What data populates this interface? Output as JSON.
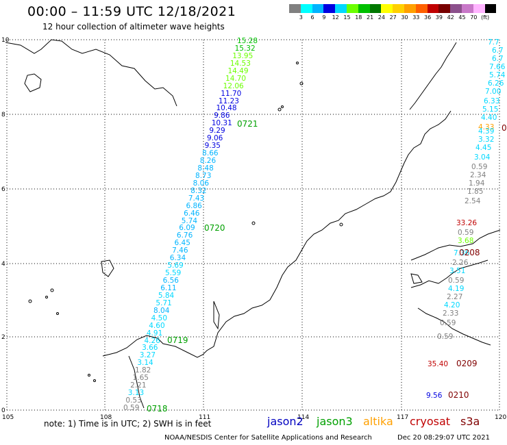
{
  "header": {
    "title": "00:00 – 11:59 UTC 12/18/2021",
    "subtitle": "12 hour collection of altimeter wave heights"
  },
  "legend": {
    "colors": [
      "#808080",
      "#00ffff",
      "#00b4ff",
      "#0000e0",
      "#00d8ff",
      "#6cff00",
      "#00c000",
      "#007800",
      "#ffff00",
      "#ffd000",
      "#ffa000",
      "#ff6000",
      "#c00000",
      "#780000",
      "#8c508c",
      "#c878c8",
      "#ffb4ff",
      "#000000"
    ],
    "labels": [
      "3",
      "6",
      "9",
      "12",
      "15",
      "18",
      "21",
      "24",
      "27",
      "30",
      "33",
      "36",
      "39",
      "42",
      "45",
      "70",
      "(ft)"
    ]
  },
  "axes": {
    "lat_labels": [
      "10",
      "8",
      "6",
      "4",
      "2",
      "0"
    ],
    "lon_labels": [
      "105",
      "108",
      "111",
      "114",
      "117",
      "120"
    ]
  },
  "track_main": [
    {
      "v": "15.28",
      "c": "#00c000"
    },
    {
      "v": "15.32",
      "c": "#00c000"
    },
    {
      "v": "13.95",
      "c": "#6cff00"
    },
    {
      "v": "14.53",
      "c": "#6cff00"
    },
    {
      "v": "14.49",
      "c": "#6cff00"
    },
    {
      "v": "14.70",
      "c": "#6cff00"
    },
    {
      "v": "12.06",
      "c": "#6cff00"
    },
    {
      "v": "11.70",
      "c": "#0000e0"
    },
    {
      "v": "11.23",
      "c": "#0000e0"
    },
    {
      "v": "10.48",
      "c": "#0000e0"
    },
    {
      "v": "9.86",
      "c": "#0000e0"
    },
    {
      "v": "10.31",
      "c": "#0000e0"
    },
    {
      "v": "9.29",
      "c": "#0000e0"
    },
    {
      "v": "9.06",
      "c": "#0000e0"
    },
    {
      "v": "9.35",
      "c": "#0000e0"
    },
    {
      "v": "8.66",
      "c": "#00b4ff"
    },
    {
      "v": "8.26",
      "c": "#00b4ff"
    },
    {
      "v": "8.48",
      "c": "#00b4ff"
    },
    {
      "v": "8.73",
      "c": "#00b4ff"
    },
    {
      "v": "8.06",
      "c": "#00b4ff"
    },
    {
      "v": "8.32",
      "c": "#00b4ff"
    },
    {
      "v": "7.43",
      "c": "#00b4ff"
    },
    {
      "v": "6.86",
      "c": "#00b4ff"
    },
    {
      "v": "6.46",
      "c": "#00b4ff"
    },
    {
      "v": "5.74",
      "c": "#00b4ff"
    },
    {
      "v": "6.09",
      "c": "#00b4ff"
    },
    {
      "v": "6.76",
      "c": "#00b4ff"
    },
    {
      "v": "6.45",
      "c": "#00b4ff"
    },
    {
      "v": "7.46",
      "c": "#00b4ff"
    },
    {
      "v": "6.34",
      "c": "#00b4ff"
    },
    {
      "v": "5.69",
      "c": "#00d8ff"
    },
    {
      "v": "5.59",
      "c": "#00d8ff"
    },
    {
      "v": "6.56",
      "c": "#00b4ff"
    },
    {
      "v": "6.11",
      "c": "#00b4ff"
    },
    {
      "v": "5.84",
      "c": "#00d8ff"
    },
    {
      "v": "5.71",
      "c": "#00d8ff"
    },
    {
      "v": "8.04",
      "c": "#00b4ff"
    },
    {
      "v": "4.50",
      "c": "#00d8ff"
    },
    {
      "v": "4.60",
      "c": "#00d8ff"
    },
    {
      "v": "4.91",
      "c": "#00d8ff"
    },
    {
      "v": "4.26",
      "c": "#00d8ff"
    },
    {
      "v": "3.66",
      "c": "#00d8ff"
    },
    {
      "v": "3.27",
      "c": "#00d8ff"
    },
    {
      "v": "3.14",
      "c": "#00d8ff"
    },
    {
      "v": "1.82",
      "c": "#808080"
    },
    {
      "v": "1.65",
      "c": "#808080"
    },
    {
      "v": "2.21",
      "c": "#808080"
    },
    {
      "v": "3.13",
      "c": "#00d8ff"
    },
    {
      "v": "0.53",
      "c": "#808080"
    },
    {
      "v": "0.59",
      "c": "#808080"
    }
  ],
  "track_east": [
    {
      "v": "7.7",
      "c": "#00d8ff"
    },
    {
      "v": "6.7",
      "c": "#00d8ff"
    },
    {
      "v": "6.7",
      "c": "#00d8ff"
    },
    {
      "v": "7.66",
      "c": "#00d8ff"
    },
    {
      "v": "5.74",
      "c": "#00d8ff"
    },
    {
      "v": "6.26",
      "c": "#00d8ff"
    },
    {
      "v": "7.00",
      "c": "#00d8ff"
    },
    {
      "v": "6.33",
      "c": "#00d8ff"
    },
    {
      "v": "5.15",
      "c": "#00d8ff"
    },
    {
      "v": "4.40",
      "c": "#00d8ff"
    },
    {
      "v": "4.33",
      "c": "#ffa000"
    },
    {
      "v": "4.39",
      "c": "#00d8ff"
    },
    {
      "v": "3.32",
      "c": "#00d8ff"
    },
    {
      "v": "4.45",
      "c": "#00d8ff"
    },
    {
      "v": "3.04",
      "c": "#00d8ff"
    },
    {
      "v": "0.59",
      "c": "#808080"
    },
    {
      "v": "2.34",
      "c": "#808080"
    },
    {
      "v": "1.94",
      "c": "#808080"
    },
    {
      "v": "1.85",
      "c": "#808080"
    },
    {
      "v": "2.54",
      "c": "#808080"
    },
    {
      "v": "33.26",
      "c": "#c00000"
    },
    {
      "v": "0.59",
      "c": "#808080"
    },
    {
      "v": "3.68",
      "c": "#6cff00"
    },
    {
      "v": "7.36",
      "c": "#00d8ff"
    },
    {
      "v": "2.26",
      "c": "#808080"
    },
    {
      "v": "3.51",
      "c": "#00d8ff"
    },
    {
      "v": "0.59",
      "c": "#808080"
    },
    {
      "v": "4.19",
      "c": "#00d8ff"
    },
    {
      "v": "2.27",
      "c": "#808080"
    },
    {
      "v": "4.20",
      "c": "#00d8ff"
    },
    {
      "v": "2.33",
      "c": "#808080"
    },
    {
      "v": "0.59",
      "c": "#808080"
    },
    {
      "v": "0.59",
      "c": "#808080"
    },
    {
      "v": "35.40",
      "c": "#c00000"
    },
    {
      "v": "9.56",
      "c": "#0000e0"
    }
  ],
  "pass_labels": [
    {
      "t": "0721",
      "c": "#00a000"
    },
    {
      "t": "0720",
      "c": "#00a000"
    },
    {
      "t": "0719",
      "c": "#00a000"
    },
    {
      "t": "0718",
      "c": "#00a000"
    },
    {
      "t": "0208",
      "c": "#800000"
    },
    {
      "t": "0209",
      "c": "#800000"
    },
    {
      "t": "0210",
      "c": "#800000"
    },
    {
      "t": "0",
      "c": "#800000"
    }
  ],
  "footer": {
    "note": "note:  1) Time is in UTC;  2) SWH is in feet",
    "satellites": [
      {
        "name": "jason2",
        "color": "#0000c0"
      },
      {
        "name": "jason3",
        "color": "#00a000"
      },
      {
        "name": "altika",
        "color": "#ffa000"
      },
      {
        "name": "cryosat",
        "color": "#c00000"
      },
      {
        "name": "s3a",
        "color": "#800000"
      }
    ],
    "credit": "NOAA/NESDIS Center for Satellite Applications and Research",
    "timestamp": "Dec 20 08:29:07 UTC 2021"
  }
}
